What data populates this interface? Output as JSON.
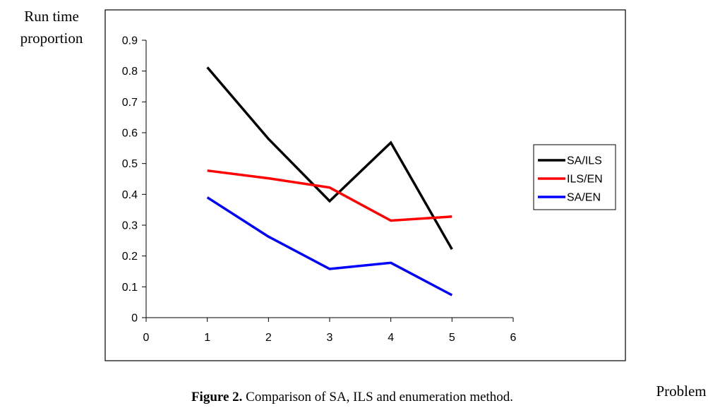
{
  "chart_data": {
    "type": "line",
    "title": "",
    "ylabel_lines": [
      "Run time",
      "proportion"
    ],
    "xlabel": "Problem size",
    "caption": {
      "label": "Figure 2.",
      "text": " Comparison of SA, ILS and enumeration method."
    },
    "xlim": [
      0,
      6
    ],
    "ylim": [
      0,
      0.9
    ],
    "x_ticks": [
      "0",
      "1",
      "2",
      "3",
      "4",
      "5",
      "6"
    ],
    "y_ticks": [
      "0",
      "0.1",
      "0.2",
      "0.3",
      "0.4",
      "0.5",
      "0.6",
      "0.7",
      "0.8",
      "0.9"
    ],
    "grid": false,
    "legend_position": "right",
    "x": [
      1,
      2,
      3,
      4,
      5
    ],
    "series": [
      {
        "name": "SA/ILS",
        "color": "#000000",
        "values": [
          0.812,
          0.58,
          0.378,
          0.568,
          0.222
        ]
      },
      {
        "name": "ILS/EN",
        "color": "#ff0000",
        "values": [
          0.477,
          0.452,
          0.422,
          0.315,
          0.328
        ]
      },
      {
        "name": "SA/EN",
        "color": "#0000ff",
        "values": [
          0.39,
          0.263,
          0.158,
          0.178,
          0.073
        ]
      }
    ]
  }
}
